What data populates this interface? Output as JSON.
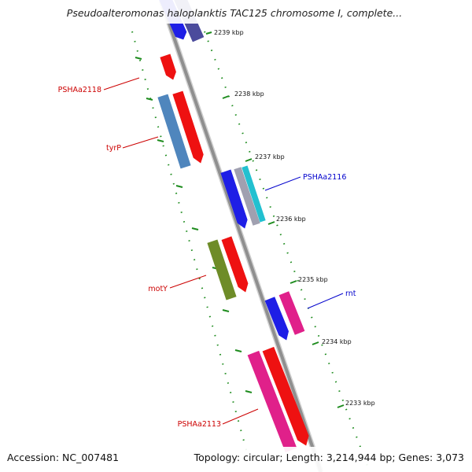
{
  "title": "Pseudoalteromonas haloplanktis TAC125 chromosome I, complete...",
  "footer": {
    "accession": "Accession: NC_007481",
    "topology": "Topology: circular; Length: 3,214,944 bp; Genes: 3,073"
  },
  "colors": {
    "backbone": "#8f8f8f",
    "forward_label": "#cc0000",
    "reverse_label": "#0000cc",
    "tick": "#1e8c1e"
  },
  "ticks": [
    "2239 kbp",
    "2238 kbp",
    "2237 kbp",
    "2236 kbp",
    "2235 kbp",
    "2234 kbp",
    "2233 kbp"
  ],
  "gene_labels": [
    {
      "text": "PSHAa2118",
      "color": "#cc0000"
    },
    {
      "text": "tyrP",
      "color": "#cc0000"
    },
    {
      "text": "PSHAa2116",
      "color": "#0000cc"
    },
    {
      "text": "motY",
      "color": "#cc0000"
    },
    {
      "text": "rnt",
      "color": "#0000cc"
    },
    {
      "text": "PSHAa2113",
      "color": "#cc0000"
    }
  ],
  "genes": [
    {
      "feature": "forward CDS (top, cut off)",
      "color": "#1e1ee6"
    },
    {
      "feature": "forward CDS (top, cut off)",
      "color": "#4b4b9c"
    },
    {
      "feature": "PSHAa2118 CDS",
      "color": "#ee1111"
    },
    {
      "feature": "tyrP COG",
      "color": "#4f86bd"
    },
    {
      "feature": "tyrP CDS",
      "color": "#ee1111"
    },
    {
      "feature": "PSHAa2116 CDS",
      "color": "#1e1ee6"
    },
    {
      "feature": "PSHAa2116 tRNA",
      "color": "#a0a0b0"
    },
    {
      "feature": "PSHAa2116 COG",
      "color": "#22c0d0"
    },
    {
      "feature": "motY COG",
      "color": "#6e8c28"
    },
    {
      "feature": "motY CDS",
      "color": "#ee1111"
    },
    {
      "feature": "rnt CDS",
      "color": "#1e1ee6"
    },
    {
      "feature": "rnt COG",
      "color": "#e0208a"
    },
    {
      "feature": "PSHAa2113 COG",
      "color": "#e0208a"
    },
    {
      "feature": "PSHAa2113 CDS",
      "color": "#ee1111"
    }
  ]
}
